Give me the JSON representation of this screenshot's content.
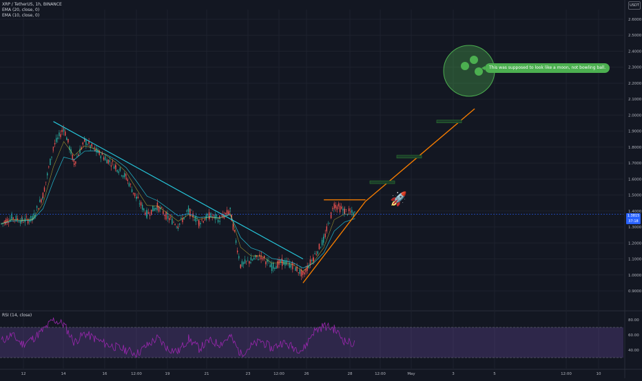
{
  "header": {
    "symbol": "XRP / TetherUS, 1h, BINANCE",
    "indicators": [
      "EMA (20, close, 0)",
      "EMA (10, close, 0)"
    ],
    "unit": "USDT"
  },
  "rsi": {
    "label": "RSI (14, close)"
  },
  "last_price": {
    "value": "1.3815",
    "countdown": "37:18"
  },
  "annotation": {
    "text": "This was supposed to look like a moon, not bowling ball."
  },
  "colors": {
    "background": "#131722",
    "grid": "#1e222d",
    "candle_up": "#26a69a",
    "candle_down": "#ef5350",
    "ema20": "#26c6da",
    "ema10": "#ffeb3b",
    "trendline_down": "#26c6da",
    "trendline_up": "#f57c00",
    "rsi_line": "#9c27b0",
    "moon": "#4caf50",
    "rocket": "#4caf50"
  },
  "icons": {
    "rocket": "rocket-icon",
    "moon": "moon-icon"
  },
  "chart_data": [
    {
      "type": "line",
      "title": "XRP / TetherUS, 1h, BINANCE",
      "y_ticks": [
        "2.6000",
        "2.5000",
        "2.4000",
        "2.3000",
        "2.2000",
        "2.1000",
        "2.0000",
        "1.9000",
        "1.8000",
        "1.7000",
        "1.6000",
        "1.5000",
        "1.4000",
        "1.3000",
        "1.2000",
        "1.1000",
        "1.0000",
        "0.9000"
      ],
      "x_ticks": [
        "12",
        "14",
        "16",
        "12:00",
        "19",
        "21",
        "23",
        "12:00",
        "26",
        "28",
        "12:00",
        "May",
        "3",
        "5",
        "12:00",
        "10"
      ],
      "ylim": [
        0.88,
        2.66
      ],
      "series": [
        {
          "name": "XRP / TetherUS",
          "x": [
            "Apr 11",
            "Apr 12",
            "Apr 12 12:00",
            "Apr 13",
            "Apr 13 12:00",
            "Apr 14",
            "Apr 14 12:00",
            "Apr 15",
            "Apr 15 12:00",
            "Apr 16",
            "Apr 16 12:00",
            "Apr 17",
            "Apr 17 12:00",
            "Apr 18",
            "Apr 18 12:00",
            "Apr 19",
            "Apr 19 12:00",
            "Apr 20",
            "Apr 20 12:00",
            "Apr 21",
            "Apr 21 12:00",
            "Apr 22",
            "Apr 22 12:00",
            "Apr 23",
            "Apr 23 12:00",
            "Apr 24",
            "Apr 24 12:00",
            "Apr 25",
            "Apr 25 12:00",
            "Apr 26",
            "Apr 26 12:00",
            "Apr 27",
            "Apr 27 12:00",
            "Apr 28",
            "Apr 28 12:00"
          ],
          "values": [
            1.32,
            1.36,
            1.34,
            1.35,
            1.5,
            1.8,
            1.92,
            1.7,
            1.84,
            1.78,
            1.73,
            1.68,
            1.61,
            1.48,
            1.38,
            1.43,
            1.36,
            1.31,
            1.4,
            1.33,
            1.37,
            1.35,
            1.4,
            1.06,
            1.09,
            1.12,
            1.05,
            1.08,
            1.06,
            1.0,
            1.11,
            1.22,
            1.44,
            1.4,
            1.38
          ]
        }
      ],
      "trendlines": [
        {
          "name": "descending",
          "from": [
            "Apr 14",
            1.96
          ],
          "to": [
            "Apr 26",
            1.1
          ]
        },
        {
          "name": "ascending",
          "from": [
            "Apr 26",
            0.95
          ],
          "to": [
            "Apr 29",
            1.46
          ]
        },
        {
          "name": "horizontal-resistance",
          "from": [
            "Apr 27",
            1.47
          ],
          "to": [
            "Apr 29",
            1.47
          ]
        },
        {
          "name": "projection",
          "from": [
            "Apr 29",
            1.46
          ],
          "to": [
            "May 4",
            2.04
          ]
        }
      ],
      "projection_bars": [
        {
          "label": "",
          "value": 1.58
        },
        {
          "label": "",
          "value": 1.74
        },
        {
          "label": "",
          "value": 1.96
        }
      ]
    },
    {
      "type": "line",
      "title": "RSI (14, close)",
      "y_ticks": [
        "80.00",
        "60.00",
        "40.00"
      ],
      "ylim": [
        20,
        90
      ],
      "levels": [
        70,
        30
      ],
      "series": [
        {
          "name": "RSI",
          "x": [
            "Apr 11",
            "Apr 12",
            "Apr 12 12:00",
            "Apr 13",
            "Apr 13 12:00",
            "Apr 14",
            "Apr 14 12:00",
            "Apr 15",
            "Apr 15 12:00",
            "Apr 16",
            "Apr 16 12:00",
            "Apr 17",
            "Apr 17 12:00",
            "Apr 18",
            "Apr 18 12:00",
            "Apr 19",
            "Apr 19 12:00",
            "Apr 20",
            "Apr 20 12:00",
            "Apr 21",
            "Apr 21 12:00",
            "Apr 22",
            "Apr 22 12:00",
            "Apr 23",
            "Apr 23 12:00",
            "Apr 24",
            "Apr 24 12:00",
            "Apr 25",
            "Apr 25 12:00",
            "Apr 26",
            "Apr 26 12:00",
            "Apr 27",
            "Apr 27 12:00",
            "Apr 28",
            "Apr 28 12:00"
          ],
          "values": [
            52,
            60,
            48,
            55,
            66,
            80,
            74,
            50,
            62,
            55,
            48,
            44,
            40,
            35,
            46,
            56,
            42,
            38,
            55,
            42,
            52,
            48,
            58,
            35,
            45,
            52,
            42,
            50,
            44,
            40,
            64,
            72,
            68,
            52,
            48
          ]
        }
      ]
    }
  ]
}
